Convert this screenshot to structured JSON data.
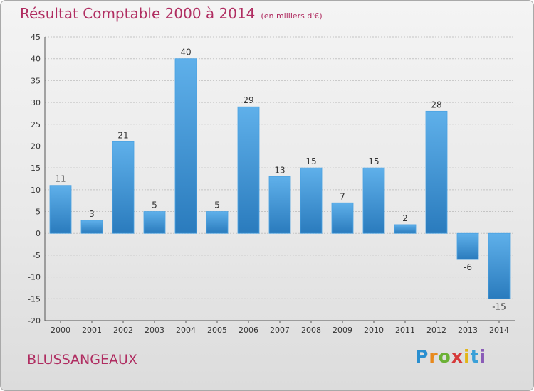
{
  "chart_data": {
    "type": "bar",
    "title": "Résultat Comptable 2000 à 2014",
    "subtitle": "(en milliers d'€)",
    "categories": [
      "2000",
      "2001",
      "2002",
      "2003",
      "2004",
      "2005",
      "2006",
      "2007",
      "2008",
      "2009",
      "2010",
      "2011",
      "2012",
      "2013",
      "2014"
    ],
    "values": [
      11,
      3,
      21,
      5,
      40,
      5,
      29,
      13,
      15,
      7,
      15,
      2,
      28,
      -6,
      -15
    ],
    "ylim": [
      -20,
      45
    ],
    "yticks": [
      45,
      40,
      35,
      30,
      25,
      20,
      15,
      10,
      5,
      0,
      -5,
      -10,
      -15,
      -20
    ],
    "grid": true,
    "xlabel": "",
    "ylabel": "",
    "bar_color": "#3d93d6"
  },
  "footer": {
    "commune": "BLUSSANGEAUX",
    "logo_letters": [
      "P",
      "r",
      "o",
      "x",
      "i",
      "t",
      "i"
    ],
    "logo_colors": [
      "#2a8fd0",
      "#e8891c",
      "#6bb135",
      "#d63a3a",
      "#e2b619",
      "#3aa0d8",
      "#8a5bb7"
    ]
  }
}
